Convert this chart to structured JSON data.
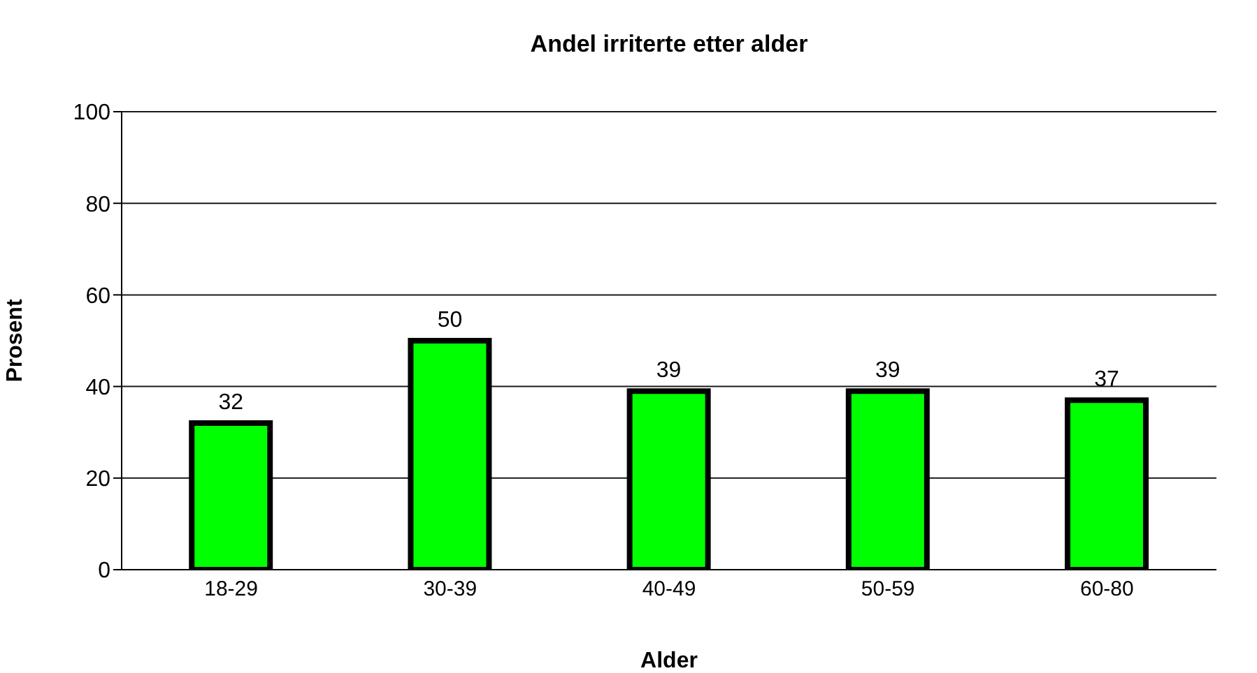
{
  "chart_data": {
    "type": "bar",
    "title": "Andel irriterte etter alder",
    "xlabel": "Alder",
    "ylabel": "Prosent",
    "categories": [
      "18-29",
      "30-39",
      "40-49",
      "50-59",
      "60-80"
    ],
    "series": [
      {
        "color": "#00ff00",
        "values": [
          32,
          50,
          39,
          39,
          37
        ]
      }
    ],
    "ylim": [
      0,
      100
    ],
    "yticks": [
      0,
      20,
      40,
      60,
      80,
      100
    ],
    "grid": "y",
    "data_labels": true,
    "legend": false
  }
}
